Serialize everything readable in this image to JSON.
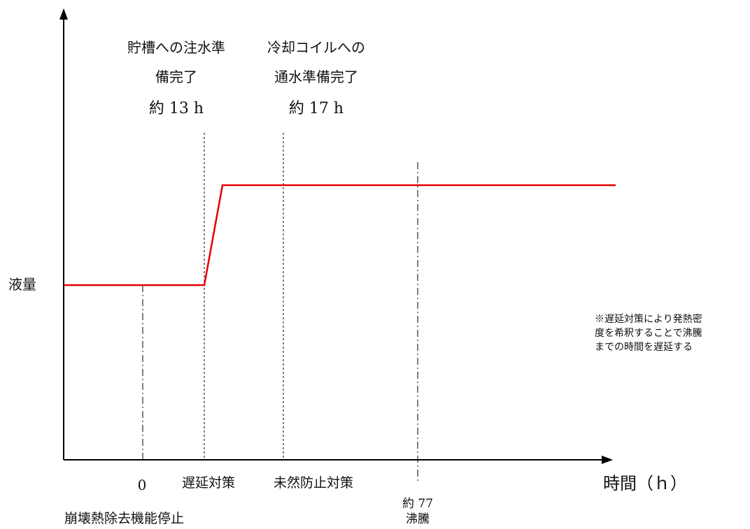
{
  "y_label": "液量",
  "x_label": "時間（ｈ）",
  "annotations": {
    "ann1_line1": "貯槽への注水準",
    "ann1_line2": "備完了",
    "ann1_time": "約 13 h",
    "ann2_line1": "冷却コイルへの",
    "ann2_line2": "通水準備完了",
    "ann2_time": "約 17 h"
  },
  "bottom": {
    "zero": "0",
    "zero_desc": "崩壊熱除去機能停止",
    "delay": "遅延対策",
    "prevent": "未然防止対策",
    "boil_time": "約 77",
    "boil": "沸騰"
  },
  "note": {
    "line1": "※遅延対策により発熱密",
    "line2": "度を希釈することで沸騰",
    "line3": "までの時間を遅延する"
  },
  "colors": {
    "level_line": "#e60000",
    "axis": "#000000"
  }
}
